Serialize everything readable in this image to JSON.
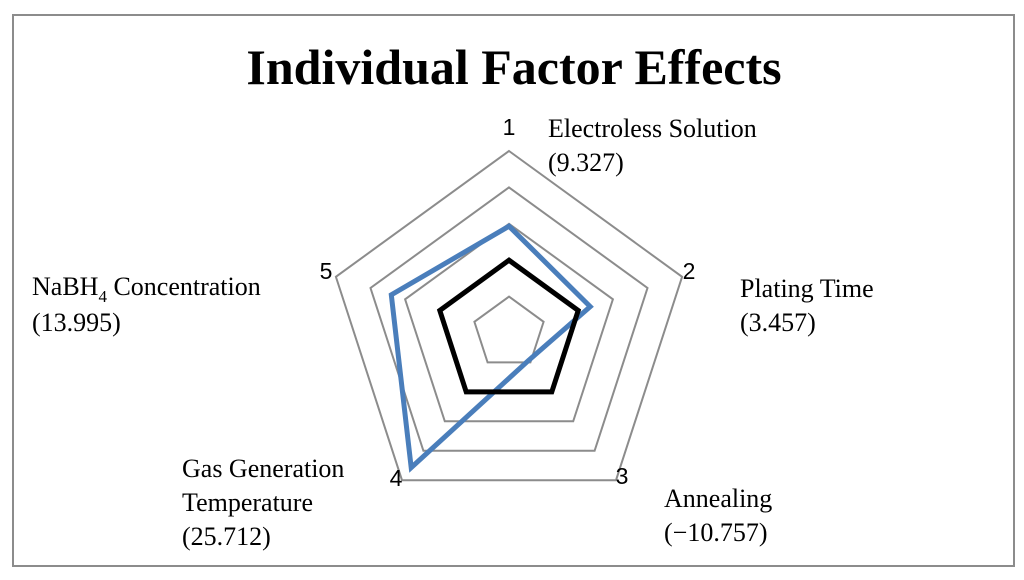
{
  "chart_data": {
    "type": "radar",
    "title": "Individual Factor Effects",
    "axes": [
      "1",
      "2",
      "3",
      "4",
      "5"
    ],
    "factors": [
      {
        "axis": "1",
        "name": "Electroless Solution",
        "value_text": "(9.327)",
        "value": 9.327
      },
      {
        "axis": "2",
        "name": "Plating Time",
        "value_text": "(3.457)",
        "value": 3.457
      },
      {
        "axis": "3",
        "name": "Annealing",
        "value_text": "(−10.757)",
        "value": -10.757
      },
      {
        "axis": "4",
        "name_lines": [
          "Gas Generation",
          "Temperature"
        ],
        "value_text": "(25.712)",
        "value": 25.712
      },
      {
        "axis": "5",
        "name_main": "NaBH",
        "name_sub": "4",
        "name_rest": " Concentration",
        "value_text": "(13.995)",
        "value": 13.995
      }
    ],
    "range": [
      -20,
      30
    ],
    "rings": [
      -20,
      -10,
      0,
      10,
      20,
      30
    ],
    "series": [
      {
        "values": [
          9.327,
          3.457,
          -10.757,
          25.712,
          13.995
        ],
        "color": "#4a7ebb"
      },
      {
        "values": [
          0,
          0,
          0,
          0,
          0
        ],
        "color": "#000000"
      }
    ],
    "grid": true,
    "grid_color": "#8c8c8c"
  }
}
